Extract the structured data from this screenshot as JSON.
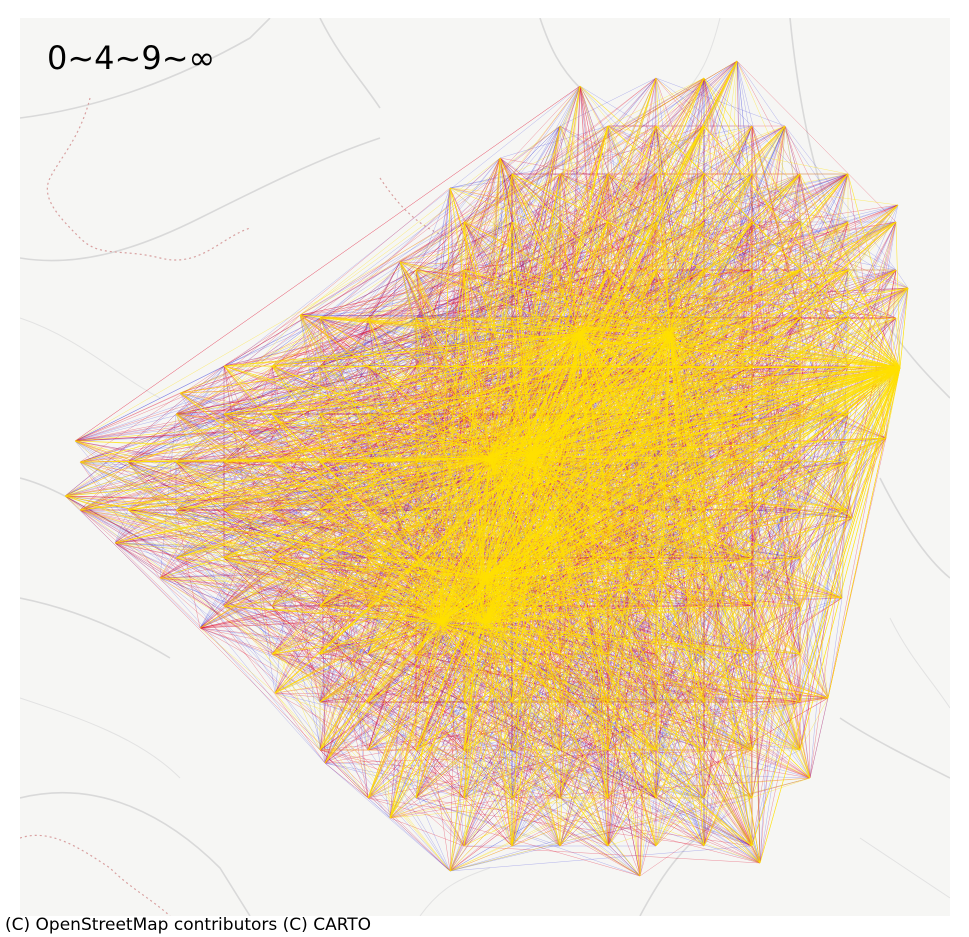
{
  "map": {
    "legend_label": "0~4~9~∞",
    "attribution": "(C) OpenStreetMap contributors (C) CARTO"
  },
  "colors": {
    "background": "#f6f6f4",
    "road": "#d6d6d6",
    "boundary": "#d8a0a0",
    "flow_low": "#3333dd",
    "flow_mid": "#e01030",
    "flow_high": "#ffe000"
  }
}
